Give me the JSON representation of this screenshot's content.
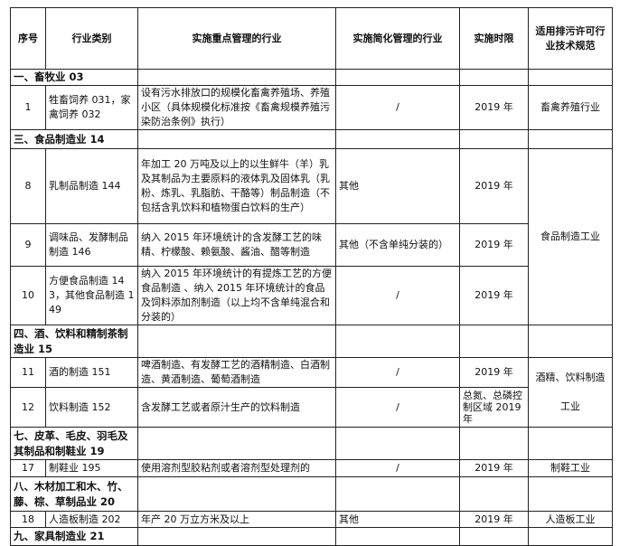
{
  "headers": [
    "序号",
    "行业类别",
    "实施重点管理的行业",
    "实施简化管理的行业",
    "实施时限",
    "适用排污许可行业技术规范"
  ],
  "sections": [
    {
      "title": "一、畜牧业 03"
    },
    {
      "title": "三、食品制造业 14"
    },
    {
      "title": "四、酒、饮料和精制茶制造业 15"
    },
    {
      "title": "七、皮革、毛皮、羽毛及其制品和制鞋业 19"
    },
    {
      "title": "八、木材加工和木、竹、藤、棕、草制品业 20"
    },
    {
      "title": "九、家具制造业 21"
    }
  ],
  "rows": [
    {
      "no": "1",
      "category": "牲畜饲养 031，家禽饲养 032",
      "key": "设有污水排放口的规模化畜禽养殖场、养殖小区（具体规模化标准按《畜禽规模养殖污染防治条例》执行）",
      "simple": "/",
      "deadline": "2019 年",
      "spec": "畜禽养殖行业"
    },
    {
      "no": "8",
      "category": "乳制品制造 144",
      "key": "年加工 20 万吨及以上的以生鲜牛（羊）乳及其制品为主要原料的液体乳及固体乳（乳粉、炼乳、乳脂肪、干酪等）制品制造（不包括含乳饮料和植物蛋白饮料的生产）",
      "simple": "其他",
      "deadline": "2019 年",
      "spec": "食品制造工业"
    },
    {
      "no": "9",
      "category": "调味品、发酵制品制造 146",
      "key": "纳入 2015 年环境统计的含发酵工艺的味精、柠檬酸、赖氨酸、酱油、醋等制造",
      "simple": "其他（不含单纯分装的）",
      "deadline": "2019 年"
    },
    {
      "no": "10",
      "category": "方便食品制造 143，其他食品制造 149",
      "key": "纳入 2015 年环境统计的有提炼工艺的方便食品制造 、纳入 2015 年环境统计的食品及饲料添加剂制造（以上均不含单纯混合和分装的）",
      "simple": "/",
      "deadline": "2019 年"
    },
    {
      "no": "11",
      "category": "酒的制造 151",
      "key": "啤酒制造、有发酵工艺的酒精制造、白酒制造、黄酒制造、葡萄酒制造",
      "simple": "/",
      "deadline": "2019 年",
      "spec": "酒精、饮料制造\n\n工业"
    },
    {
      "no": "12",
      "category": "饮料制造 152",
      "key": "含发酵工艺或者原汁生产的饮料制造",
      "simple": "/",
      "deadline": "总氮、总磷控制区域 2019 年"
    },
    {
      "no": "17",
      "category": "制鞋业 195",
      "key": "使用溶剂型胶粘剂或者溶剂型处理剂的",
      "simple": "/",
      "deadline": "2019 年",
      "spec": "制鞋工业"
    },
    {
      "no": "18",
      "category": "人造板制造 202",
      "key": "年产 20 万立方米及以上",
      "simple": "其他",
      "deadline": "2019 年",
      "spec": "人造板工业"
    }
  ]
}
